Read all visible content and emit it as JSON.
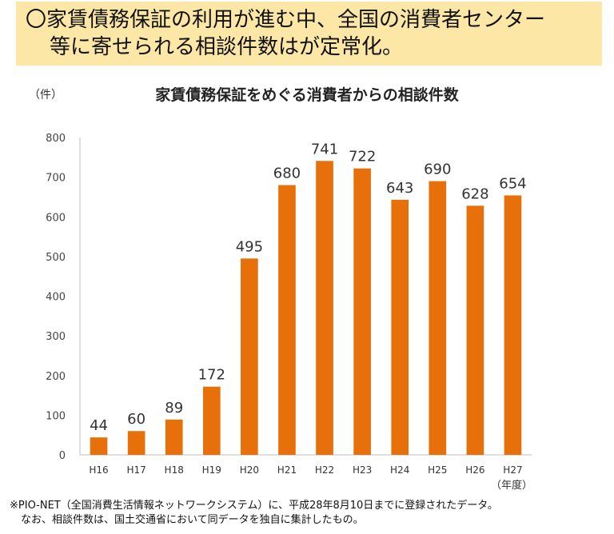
{
  "banner": {
    "line1": "〇家賃債務保証の利用が進む中、全国の消費者センター",
    "line2": "等に寄せられる相談件数はが定常化。"
  },
  "footnote": {
    "line1": "※PIO-NET（全国消費生活情報ネットワークシステム）に、平成28年8月10日までに登録されたデータ。",
    "line2": "なお、相談件数は、国土交通省において同データを独自に集計したもの。"
  },
  "colors": {
    "bar": "#e8700a",
    "banner_bg": "#fde7a6"
  },
  "chart_data": {
    "type": "bar",
    "title": "家賃債務保証をめぐる消費者からの相談件数",
    "ylabel": "（件）",
    "xlabel": "（年度）",
    "categories": [
      "H16",
      "H17",
      "H18",
      "H19",
      "H20",
      "H21",
      "H22",
      "H23",
      "H24",
      "H25",
      "H26",
      "H27"
    ],
    "values": [
      44,
      60,
      89,
      172,
      495,
      680,
      741,
      722,
      643,
      690,
      628,
      654
    ],
    "ylim": [
      0,
      800
    ],
    "yticks": [
      0,
      100,
      200,
      300,
      400,
      500,
      600,
      700,
      800
    ],
    "grid": false,
    "legend": "none"
  }
}
